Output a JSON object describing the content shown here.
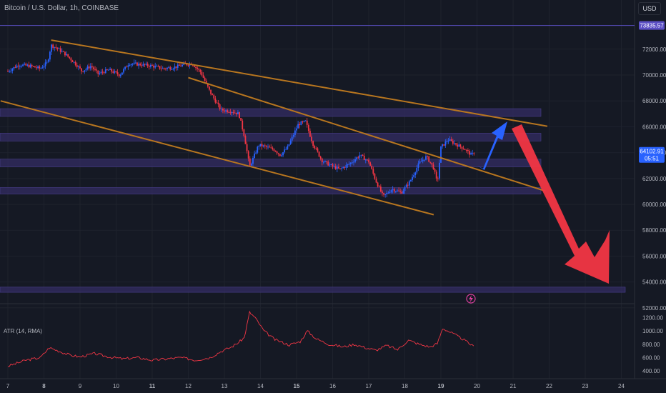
{
  "header": {
    "symbol": "Bitcoin / U.S. Dollar, 1h, COINBASE",
    "currency_button": "USD"
  },
  "indicator": {
    "label": "ATR (14, RMA)"
  },
  "price_scale": {
    "high_line_label": "73835.57",
    "last_price_label": "64102.91",
    "countdown_label": "05:51"
  },
  "colors": {
    "background": "#151924",
    "up": "#2962ff",
    "down": "#f23645",
    "trendline": "#b8761f",
    "zone": "#2f2a5c",
    "atr": "#f23645",
    "arrow_up": "#2962ff",
    "arrow_down": "#f23645"
  },
  "chart_data": [
    {
      "type": "candlestick",
      "title": "Bitcoin / U.S. Dollar, 1h, COINBASE",
      "x_ticks": [
        "7",
        "8",
        "9",
        "10",
        "11",
        "12",
        "13",
        "14",
        "15",
        "16",
        "17",
        "18",
        "19",
        "20",
        "21",
        "22",
        "23",
        "24"
      ],
      "x_tick_days": [
        7,
        8,
        9,
        10,
        11,
        12,
        13,
        14,
        15,
        16,
        17,
        18,
        19,
        20,
        21,
        22,
        23,
        24
      ],
      "y_ticks": [
        52000,
        54000,
        56000,
        58000,
        60000,
        62000,
        64000,
        66000,
        68000,
        70000,
        72000
      ],
      "ylim": [
        51500,
        76000
      ],
      "price_path": [
        [
          7.0,
          70300
        ],
        [
          7.3,
          70800
        ],
        [
          7.6,
          70700
        ],
        [
          7.9,
          70500
        ],
        [
          8.1,
          71000
        ],
        [
          8.2,
          72300
        ],
        [
          8.35,
          72100
        ],
        [
          8.6,
          71600
        ],
        [
          8.9,
          70800
        ],
        [
          9.05,
          70300
        ],
        [
          9.3,
          70700
        ],
        [
          9.5,
          70100
        ],
        [
          9.8,
          70400
        ],
        [
          10.1,
          70000
        ],
        [
          10.35,
          70900
        ],
        [
          10.7,
          70800
        ],
        [
          11.0,
          70700
        ],
        [
          11.3,
          70500
        ],
        [
          11.6,
          70600
        ],
        [
          11.9,
          70800
        ],
        [
          12.1,
          70900
        ],
        [
          12.35,
          70200
        ],
        [
          12.6,
          68700
        ],
        [
          12.9,
          67300
        ],
        [
          13.2,
          67200
        ],
        [
          13.4,
          67000
        ],
        [
          13.55,
          65300
        ],
        [
          13.7,
          62900
        ],
        [
          13.95,
          64600
        ],
        [
          14.2,
          64400
        ],
        [
          14.4,
          64200
        ],
        [
          14.55,
          63800
        ],
        [
          14.75,
          64400
        ],
        [
          15.05,
          66200
        ],
        [
          15.25,
          66400
        ],
        [
          15.45,
          64700
        ],
        [
          15.7,
          63400
        ],
        [
          15.95,
          63000
        ],
        [
          16.2,
          62700
        ],
        [
          16.5,
          63200
        ],
        [
          16.75,
          63800
        ],
        [
          17.0,
          63300
        ],
        [
          17.2,
          61800
        ],
        [
          17.4,
          60600
        ],
        [
          17.65,
          61200
        ],
        [
          17.9,
          60900
        ],
        [
          18.15,
          61800
        ],
        [
          18.4,
          63200
        ],
        [
          18.6,
          63700
        ],
        [
          18.8,
          62800
        ],
        [
          18.9,
          61600
        ],
        [
          19.0,
          64400
        ],
        [
          19.2,
          65000
        ],
        [
          19.45,
          64600
        ],
        [
          19.65,
          64300
        ],
        [
          19.85,
          63800
        ],
        [
          19.95,
          64100
        ]
      ],
      "atr_path": [
        [
          7.0,
          470
        ],
        [
          7.5,
          560
        ],
        [
          7.9,
          600
        ],
        [
          8.15,
          750
        ],
        [
          8.4,
          700
        ],
        [
          8.7,
          640
        ],
        [
          9.0,
          610
        ],
        [
          9.4,
          660
        ],
        [
          9.8,
          610
        ],
        [
          10.2,
          580
        ],
        [
          10.6,
          600
        ],
        [
          11.0,
          560
        ],
        [
          11.4,
          580
        ],
        [
          11.8,
          600
        ],
        [
          12.2,
          560
        ],
        [
          12.6,
          600
        ],
        [
          12.9,
          690
        ],
        [
          13.2,
          760
        ],
        [
          13.4,
          830
        ],
        [
          13.55,
          900
        ],
        [
          13.7,
          1280
        ],
        [
          13.85,
          1200
        ],
        [
          14.1,
          1000
        ],
        [
          14.4,
          870
        ],
        [
          14.8,
          790
        ],
        [
          15.1,
          840
        ],
        [
          15.3,
          1000
        ],
        [
          15.55,
          880
        ],
        [
          15.9,
          800
        ],
        [
          16.3,
          760
        ],
        [
          16.6,
          800
        ],
        [
          16.9,
          750
        ],
        [
          17.2,
          710
        ],
        [
          17.5,
          780
        ],
        [
          17.8,
          720
        ],
        [
          18.1,
          860
        ],
        [
          18.4,
          800
        ],
        [
          18.7,
          760
        ],
        [
          18.9,
          810
        ],
        [
          19.05,
          1040
        ],
        [
          19.3,
          970
        ],
        [
          19.6,
          880
        ],
        [
          19.95,
          750
        ]
      ],
      "atr_ticks": [
        400,
        600,
        800,
        1000,
        1200
      ],
      "atr_ylim": [
        250,
        1350
      ],
      "high_line": 73835.57,
      "last_price": 64102.91,
      "zones": [
        [
          66800,
          67400
        ],
        [
          64900,
          65500
        ],
        [
          62900,
          63500
        ],
        [
          60800,
          61300
        ],
        [
          53200,
          53600
        ]
      ],
      "trendlines": [
        [
          [
            8.2,
            72700
          ],
          [
            21.0,
            66500
          ]
        ],
        [
          [
            12.0,
            69800
          ],
          [
            20.8,
            62000
          ]
        ],
        [
          [
            6.8,
            68000
          ],
          [
            18.8,
            59200
          ]
        ]
      ]
    }
  ]
}
